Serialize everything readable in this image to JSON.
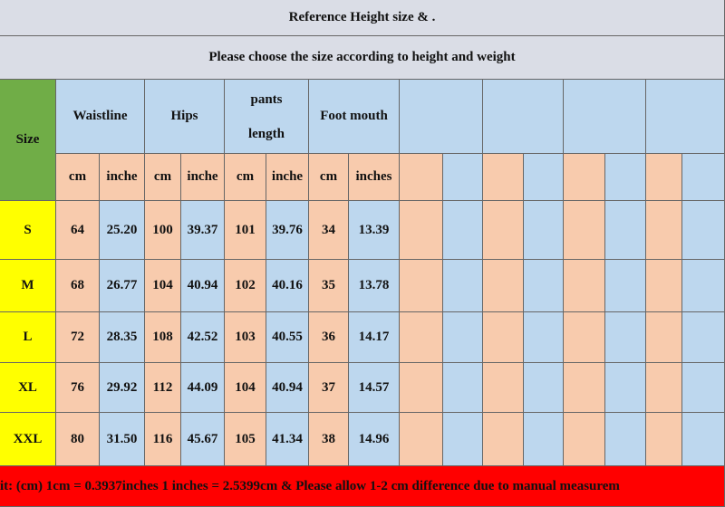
{
  "title": "Reference Height size   & .",
  "subtitle": "Please choose the size according to height and weight",
  "header": {
    "size": "Size",
    "columns": [
      "Waistline",
      "Hips",
      "pants length",
      "Foot mouth"
    ]
  },
  "units": [
    "cm",
    "inche",
    "cm",
    "inche",
    "cm",
    "inche",
    "cm",
    "inches"
  ],
  "rows": [
    {
      "size": "S",
      "values": [
        "64",
        "25.20",
        "100",
        "39.37",
        "101",
        "39.76",
        "34",
        "13.39"
      ]
    },
    {
      "size": "M",
      "values": [
        "68",
        "26.77",
        "104",
        "40.94",
        "102",
        "40.16",
        "35",
        "13.78"
      ]
    },
    {
      "size": "L",
      "values": [
        "72",
        "28.35",
        "108",
        "42.52",
        "103",
        "40.55",
        "36",
        "14.17"
      ]
    },
    {
      "size": "XL",
      "values": [
        "76",
        "29.92",
        "112",
        "44.09",
        "104",
        "40.94",
        "37",
        "14.57"
      ]
    },
    {
      "size": "XXL",
      "values": [
        "80",
        "31.50",
        "116",
        "45.67",
        "105",
        "41.34",
        "38",
        "14.96"
      ]
    }
  ],
  "footer": "it: (cm)  1cm = 0.3937inches  1 inches = 2.5399cm  &     Please allow 1-2 cm difference due to manual measurem"
}
